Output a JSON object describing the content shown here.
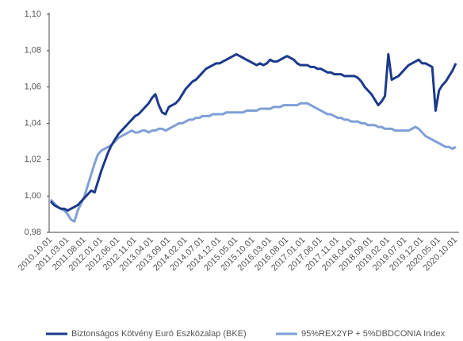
{
  "chart_data": {
    "type": "line",
    "categories": [
      "2010.10.01",
      null,
      null,
      null,
      null,
      "2011.03.01",
      null,
      null,
      null,
      null,
      "2011.08.01",
      null,
      null,
      null,
      null,
      "2012.01.01",
      null,
      null,
      null,
      null,
      "2012.06.01",
      null,
      null,
      null,
      null,
      "2012.11.01",
      null,
      null,
      null,
      null,
      "2013.04.01",
      null,
      null,
      null,
      null,
      "2013.09.01",
      null,
      null,
      null,
      null,
      "2014.02.01",
      null,
      null,
      null,
      null,
      "2014.07.01",
      null,
      null,
      null,
      null,
      "2014.12.01",
      null,
      null,
      null,
      null,
      "2015.05.01",
      null,
      null,
      null,
      null,
      "2015.10.01",
      null,
      null,
      null,
      null,
      "2016.03.01",
      null,
      null,
      null,
      null,
      "2016.08.01",
      null,
      null,
      null,
      null,
      "2017.01.01",
      null,
      null,
      null,
      null,
      "2017.06.01",
      null,
      null,
      null,
      null,
      "2017.11.01",
      null,
      null,
      null,
      null,
      "2018.04.01",
      null,
      null,
      null,
      null,
      "2018.09.01",
      null,
      null,
      null,
      null,
      "2019.02.01",
      null,
      null,
      null,
      null,
      "2019.07.01",
      null,
      null,
      null,
      null,
      "2019.12.01",
      null,
      null,
      null,
      null,
      "2020.05.01",
      null,
      null,
      null,
      null,
      "2020.10.01"
    ],
    "series": [
      {
        "name": "Biztonságos Kötvény Euró Eszközalap (BKE)",
        "color": "#1b3a8c",
        "values": [
          0.997,
          0.995,
          0.994,
          0.993,
          0.993,
          0.992,
          0.993,
          0.994,
          0.995,
          0.997,
          0.999,
          1.001,
          1.003,
          1.002,
          1.008,
          1.014,
          1.019,
          1.024,
          1.028,
          1.031,
          1.034,
          1.036,
          1.038,
          1.04,
          1.042,
          1.044,
          1.045,
          1.047,
          1.049,
          1.051,
          1.054,
          1.056,
          1.05,
          1.046,
          1.045,
          1.049,
          1.05,
          1.051,
          1.053,
          1.056,
          1.059,
          1.061,
          1.063,
          1.064,
          1.066,
          1.068,
          1.07,
          1.071,
          1.072,
          1.073,
          1.073,
          1.074,
          1.075,
          1.076,
          1.077,
          1.078,
          1.077,
          1.076,
          1.075,
          1.074,
          1.073,
          1.072,
          1.073,
          1.072,
          1.073,
          1.075,
          1.074,
          1.074,
          1.075,
          1.076,
          1.077,
          1.076,
          1.075,
          1.073,
          1.072,
          1.072,
          1.072,
          1.071,
          1.071,
          1.07,
          1.07,
          1.069,
          1.068,
          1.068,
          1.067,
          1.067,
          1.067,
          1.066,
          1.066,
          1.066,
          1.066,
          1.065,
          1.063,
          1.06,
          1.058,
          1.056,
          1.053,
          1.05,
          1.052,
          1.055,
          1.078,
          1.064,
          1.065,
          1.066,
          1.068,
          1.07,
          1.072,
          1.073,
          1.074,
          1.075,
          1.073,
          1.073,
          1.072,
          1.071,
          1.047,
          1.058,
          1.061,
          1.063,
          1.066,
          1.069,
          1.073
        ]
      },
      {
        "name": "95%REX2YP + 5%DBDCONIA Index",
        "color": "#7f9fd6",
        "values": [
          0.998,
          0.996,
          0.994,
          0.993,
          0.992,
          0.99,
          0.987,
          0.986,
          0.992,
          0.996,
          1.0,
          1.006,
          1.012,
          1.018,
          1.023,
          1.025,
          1.026,
          1.027,
          1.028,
          1.03,
          1.032,
          1.033,
          1.034,
          1.035,
          1.036,
          1.035,
          1.035,
          1.036,
          1.036,
          1.035,
          1.036,
          1.036,
          1.037,
          1.037,
          1.036,
          1.037,
          1.038,
          1.039,
          1.04,
          1.04,
          1.041,
          1.042,
          1.042,
          1.043,
          1.043,
          1.044,
          1.044,
          1.044,
          1.045,
          1.045,
          1.045,
          1.045,
          1.046,
          1.046,
          1.046,
          1.046,
          1.046,
          1.046,
          1.047,
          1.047,
          1.047,
          1.047,
          1.048,
          1.048,
          1.048,
          1.048,
          1.049,
          1.049,
          1.049,
          1.05,
          1.05,
          1.05,
          1.05,
          1.05,
          1.051,
          1.051,
          1.051,
          1.05,
          1.049,
          1.048,
          1.047,
          1.046,
          1.045,
          1.045,
          1.044,
          1.043,
          1.043,
          1.042,
          1.042,
          1.041,
          1.041,
          1.041,
          1.04,
          1.04,
          1.039,
          1.039,
          1.039,
          1.038,
          1.038,
          1.037,
          1.037,
          1.037,
          1.036,
          1.036,
          1.036,
          1.036,
          1.036,
          1.037,
          1.038,
          1.037,
          1.035,
          1.033,
          1.032,
          1.031,
          1.03,
          1.029,
          1.028,
          1.027,
          1.027,
          1.026,
          1.027
        ]
      }
    ],
    "ylim": [
      0.98,
      1.1
    ],
    "yticks": [
      {
        "value": 0.98,
        "label": "0,98"
      },
      {
        "value": 1.0,
        "label": "1,00"
      },
      {
        "value": 1.02,
        "label": "1,02"
      },
      {
        "value": 1.04,
        "label": "1,04"
      },
      {
        "value": 1.06,
        "label": "1,06"
      },
      {
        "value": 1.08,
        "label": "1,08"
      },
      {
        "value": 1.1,
        "label": "1,10"
      }
    ],
    "grid": false
  }
}
